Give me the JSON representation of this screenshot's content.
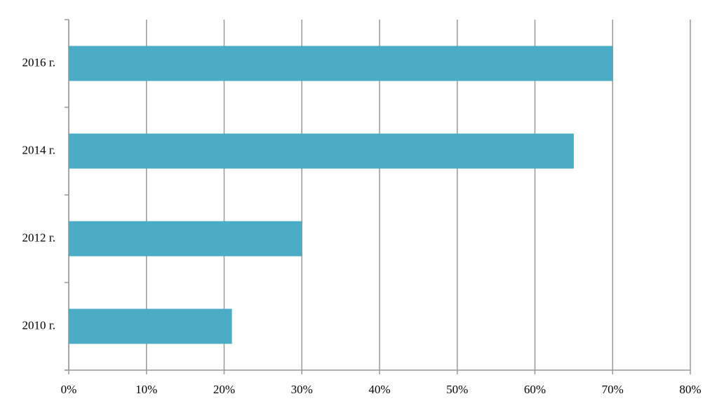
{
  "chart_data": {
    "type": "hbar",
    "categories": [
      "2016 г.",
      "2014 г.",
      "2012 г.",
      "2010 г."
    ],
    "values": [
      70,
      65,
      30,
      21
    ],
    "color": "#4bacc6",
    "xlim": [
      0,
      80
    ],
    "xticks": [
      {
        "value": 0,
        "label": "0%"
      },
      {
        "value": 10,
        "label": "10%"
      },
      {
        "value": 20,
        "label": "20%"
      },
      {
        "value": 30,
        "label": "30%"
      },
      {
        "value": 40,
        "label": "40%"
      },
      {
        "value": 50,
        "label": "50%"
      },
      {
        "value": 60,
        "label": "60%"
      },
      {
        "value": 70,
        "label": "70%"
      },
      {
        "value": 80,
        "label": "80%"
      }
    ],
    "grid": true
  }
}
